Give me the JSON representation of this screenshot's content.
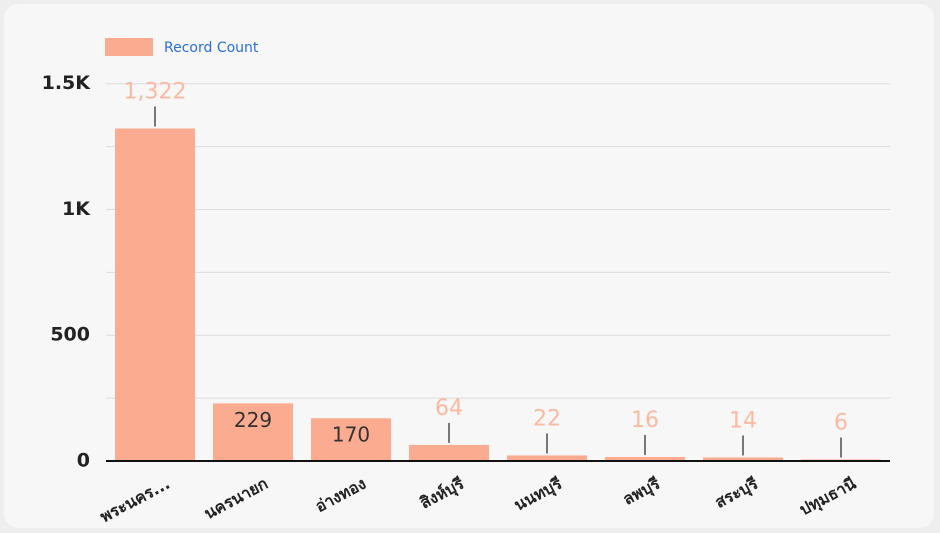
{
  "chart_data": {
    "type": "bar",
    "series": [
      {
        "name": "Record Count",
        "color": "#fbab8f",
        "values": [
          1322,
          229,
          170,
          64,
          22,
          16,
          14,
          6
        ],
        "value_labels": [
          "1,322",
          "229",
          "170",
          "64",
          "22",
          "16",
          "14",
          "6"
        ]
      }
    ],
    "categories": [
      "พระนคร...",
      "นครนายก",
      "อ่างทอง",
      "สิงห์บุรี",
      "นนทบุรี",
      "ลพบุรี",
      "สระบุรี",
      "ปทุมธานี"
    ],
    "ylim": [
      0,
      1650
    ],
    "yticks": [
      0,
      500,
      {
        "value": 1000,
        "label": "1K"
      },
      {
        "value": 1500,
        "label": "1.5K"
      }
    ],
    "minor_gridlines": [
      250,
      750,
      1250
    ],
    "grid": true,
    "legend": "top-left"
  }
}
